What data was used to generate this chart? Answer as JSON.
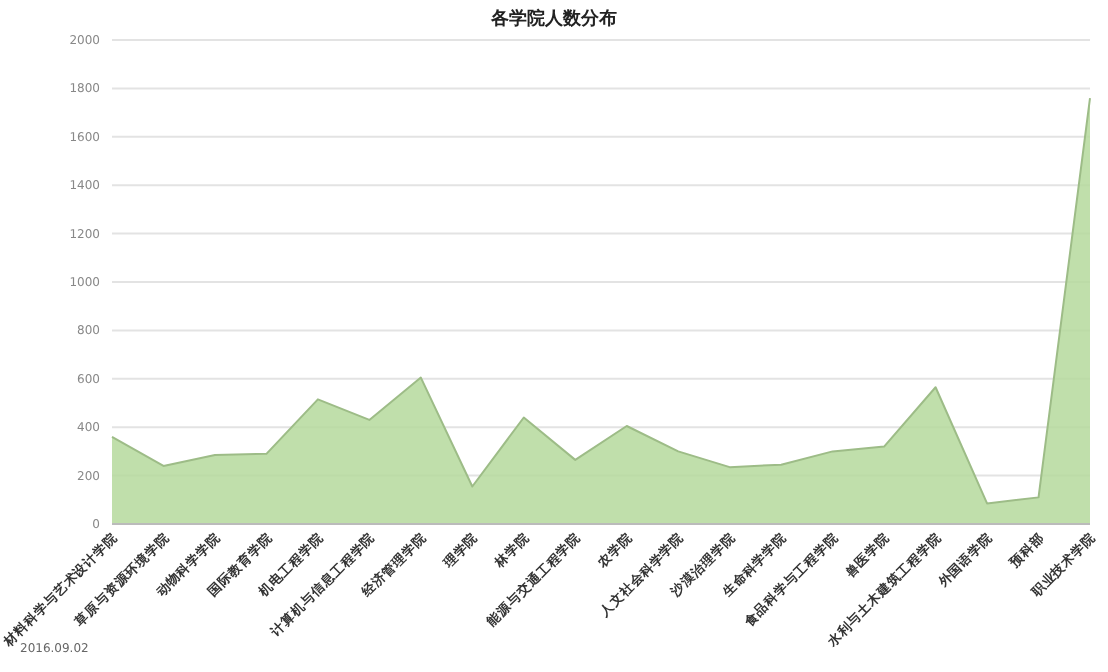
{
  "chart_data": {
    "type": "area",
    "title": "各学院人数分布",
    "categories": [
      "材料科学与艺术设计学院",
      "草原与资源环境学院",
      "动物科学学院",
      "国际教育学院",
      "机电工程学院",
      "计算机与信息工程学院",
      "经济管理学院",
      "理学院",
      "林学院",
      "能源与交通工程学院",
      "农学院",
      "人文社会科学学院",
      "沙漠治理学院",
      "生命科学学院",
      "食品科学与工程学院",
      "兽医学院",
      "水利与土木建筑工程学院",
      "外国语学院",
      "预科部",
      "职业技术学院"
    ],
    "series": [
      {
        "color": "#b5d99c",
        "values": [
          360,
          240,
          285,
          290,
          515,
          430,
          605,
          155,
          440,
          265,
          405,
          300,
          235,
          245,
          300,
          320,
          565,
          85,
          110,
          1760
        ]
      }
    ],
    "ylim": [
      0,
      2000
    ],
    "yticks": [
      0,
      200,
      400,
      600,
      800,
      1000,
      1200,
      1400,
      1600,
      1800,
      2000
    ],
    "grid": "y",
    "annotations": [
      "2016.09.02"
    ]
  }
}
